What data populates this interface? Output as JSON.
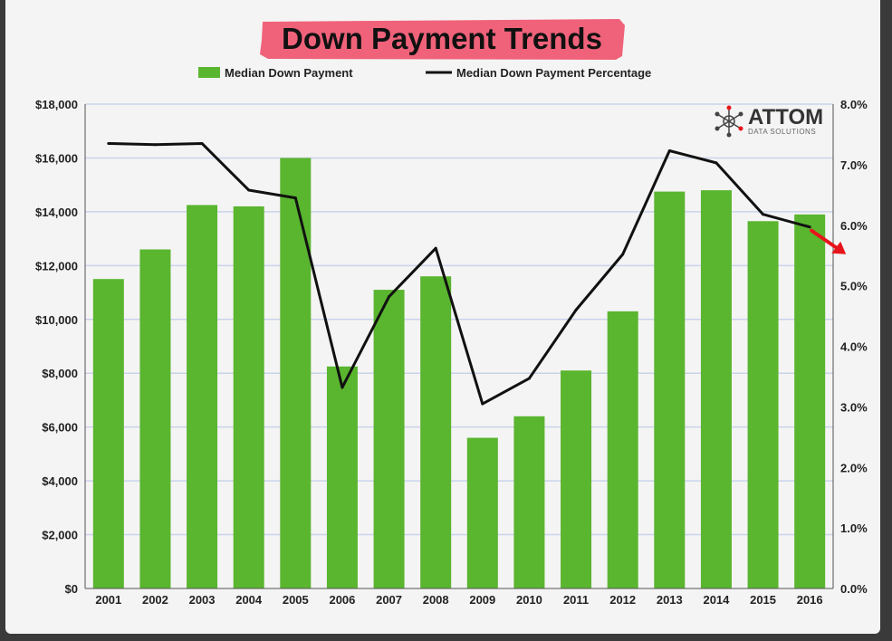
{
  "title": "Down Payment Trends",
  "logo": {
    "name": "ATTOM",
    "tagline": "DATA SOLUTIONS"
  },
  "colors": {
    "bar": "#5ab52f",
    "line": "#111111",
    "title_highlight": "#f0627a",
    "arrow": "#e8141b",
    "grid": "#c9d3ea"
  },
  "chart_data": {
    "type": "bar",
    "categories": [
      "2001",
      "2002",
      "2003",
      "2004",
      "2005",
      "2006",
      "2007",
      "2008",
      "2009",
      "2010",
      "2011",
      "2012",
      "2013",
      "2014",
      "2015",
      "2016"
    ],
    "series": [
      {
        "name": "Median Down Payment",
        "type": "bar",
        "axis": "left",
        "values": [
          11500,
          12600,
          14250,
          14200,
          16000,
          8250,
          11100,
          11600,
          5600,
          6400,
          8100,
          10300,
          14750,
          14800,
          13650,
          13900
        ]
      },
      {
        "name": "Median Down Payment Percentage",
        "type": "line",
        "axis": "right",
        "values": [
          7.35,
          7.33,
          7.35,
          6.58,
          6.45,
          3.32,
          4.82,
          5.62,
          3.05,
          3.47,
          4.6,
          5.52,
          7.23,
          7.03,
          6.18,
          5.97
        ]
      }
    ],
    "y_left": {
      "ylim": [
        0,
        18000
      ],
      "ticks": [
        "$0",
        "$2,000",
        "$4,000",
        "$6,000",
        "$8,000",
        "$10,000",
        "$12,000",
        "$14,000",
        "$16,000",
        "$18,000"
      ]
    },
    "y_right": {
      "ylim": [
        0,
        8
      ],
      "ticks": [
        "0.0%",
        "1.0%",
        "2.0%",
        "3.0%",
        "4.0%",
        "5.0%",
        "6.0%",
        "7.0%",
        "8.0%"
      ]
    },
    "legend": {
      "position": "top"
    },
    "grid": true,
    "annotation": {
      "type": "arrow",
      "direction": "down-right",
      "at": "2016"
    }
  }
}
